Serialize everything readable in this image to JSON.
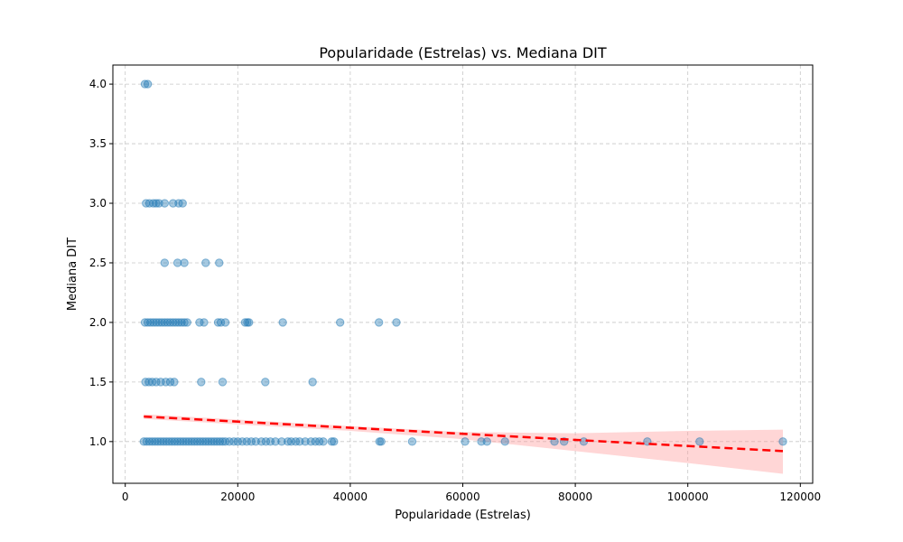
{
  "chart_data": {
    "type": "scatter",
    "title": "Popularidade (Estrelas) vs. Mediana DIT",
    "xlabel": "Popularidade (Estrelas)",
    "ylabel": "Mediana DIT",
    "xlim": [
      -2200,
      122200
    ],
    "ylim": [
      0.65,
      4.16
    ],
    "x_ticks": [
      0,
      20000,
      40000,
      60000,
      80000,
      100000,
      120000
    ],
    "x_tick_labels": [
      "0",
      "20000",
      "40000",
      "60000",
      "80000",
      "100000",
      "120000"
    ],
    "y_ticks": [
      1.0,
      1.5,
      2.0,
      2.5,
      3.0,
      3.5,
      4.0
    ],
    "y_tick_labels": [
      "1.0",
      "1.5",
      "2.0",
      "2.5",
      "3.0",
      "3.5",
      "4.0"
    ],
    "grid": true,
    "grid_style": "dashed",
    "legend": "none",
    "colors": {
      "points": "#1f77b4",
      "trend_line": "#ff0000",
      "confidence_band": "#ff9999"
    },
    "series": [
      {
        "type": "scatter",
        "points": [
          [
            3500,
            4.0
          ],
          [
            4000,
            4.0
          ],
          [
            3700,
            3.0
          ],
          [
            4300,
            3.0
          ],
          [
            5000,
            3.0
          ],
          [
            5500,
            3.0
          ],
          [
            6000,
            3.0
          ],
          [
            7000,
            3.0
          ],
          [
            8500,
            3.0
          ],
          [
            9500,
            3.0
          ],
          [
            10200,
            3.0
          ],
          [
            7000,
            2.5
          ],
          [
            9300,
            2.5
          ],
          [
            10500,
            2.5
          ],
          [
            14300,
            2.5
          ],
          [
            16700,
            2.5
          ],
          [
            3500,
            2.0
          ],
          [
            4000,
            2.0
          ],
          [
            4500,
            2.0
          ],
          [
            5000,
            2.0
          ],
          [
            5500,
            2.0
          ],
          [
            6000,
            2.0
          ],
          [
            6500,
            2.0
          ],
          [
            7000,
            2.0
          ],
          [
            7500,
            2.0
          ],
          [
            8000,
            2.0
          ],
          [
            8500,
            2.0
          ],
          [
            9000,
            2.0
          ],
          [
            9500,
            2.0
          ],
          [
            10000,
            2.0
          ],
          [
            10500,
            2.0
          ],
          [
            11000,
            2.0
          ],
          [
            13200,
            2.0
          ],
          [
            14000,
            2.0
          ],
          [
            16500,
            2.0
          ],
          [
            17000,
            2.0
          ],
          [
            17800,
            2.0
          ],
          [
            21300,
            2.0
          ],
          [
            21700,
            2.0
          ],
          [
            22000,
            2.0
          ],
          [
            28000,
            2.0
          ],
          [
            38200,
            2.0
          ],
          [
            45100,
            2.0
          ],
          [
            48200,
            2.0
          ],
          [
            3600,
            1.5
          ],
          [
            4200,
            1.5
          ],
          [
            4800,
            1.5
          ],
          [
            5500,
            1.5
          ],
          [
            6300,
            1.5
          ],
          [
            7200,
            1.5
          ],
          [
            8000,
            1.5
          ],
          [
            8700,
            1.5
          ],
          [
            13500,
            1.5
          ],
          [
            17300,
            1.5
          ],
          [
            24900,
            1.5
          ],
          [
            33300,
            1.5
          ],
          [
            3300,
            1.0
          ],
          [
            3800,
            1.0
          ],
          [
            4300,
            1.0
          ],
          [
            4800,
            1.0
          ],
          [
            5300,
            1.0
          ],
          [
            5800,
            1.0
          ],
          [
            6300,
            1.0
          ],
          [
            6800,
            1.0
          ],
          [
            7300,
            1.0
          ],
          [
            7800,
            1.0
          ],
          [
            8300,
            1.0
          ],
          [
            8800,
            1.0
          ],
          [
            9300,
            1.0
          ],
          [
            9800,
            1.0
          ],
          [
            10300,
            1.0
          ],
          [
            10800,
            1.0
          ],
          [
            11300,
            1.0
          ],
          [
            11800,
            1.0
          ],
          [
            12300,
            1.0
          ],
          [
            12800,
            1.0
          ],
          [
            13300,
            1.0
          ],
          [
            13800,
            1.0
          ],
          [
            14300,
            1.0
          ],
          [
            14800,
            1.0
          ],
          [
            15300,
            1.0
          ],
          [
            15800,
            1.0
          ],
          [
            16300,
            1.0
          ],
          [
            16800,
            1.0
          ],
          [
            17300,
            1.0
          ],
          [
            17800,
            1.0
          ],
          [
            18500,
            1.0
          ],
          [
            19300,
            1.0
          ],
          [
            20000,
            1.0
          ],
          [
            20800,
            1.0
          ],
          [
            21600,
            1.0
          ],
          [
            22400,
            1.0
          ],
          [
            23200,
            1.0
          ],
          [
            24200,
            1.0
          ],
          [
            25000,
            1.0
          ],
          [
            25800,
            1.0
          ],
          [
            26700,
            1.0
          ],
          [
            27800,
            1.0
          ],
          [
            28900,
            1.0
          ],
          [
            29500,
            1.0
          ],
          [
            30300,
            1.0
          ],
          [
            31000,
            1.0
          ],
          [
            32000,
            1.0
          ],
          [
            33000,
            1.0
          ],
          [
            33800,
            1.0
          ],
          [
            34500,
            1.0
          ],
          [
            35200,
            1.0
          ],
          [
            36700,
            1.0
          ],
          [
            37100,
            1.0
          ],
          [
            45200,
            1.0
          ],
          [
            45500,
            1.0
          ],
          [
            51000,
            1.0
          ],
          [
            60400,
            1.0
          ],
          [
            63300,
            1.0
          ],
          [
            64300,
            1.0
          ],
          [
            67500,
            1.0
          ],
          [
            76300,
            1.0
          ],
          [
            78000,
            1.0
          ],
          [
            81500,
            1.0
          ],
          [
            92800,
            1.0
          ],
          [
            102100,
            1.0
          ],
          [
            116900,
            1.0
          ]
        ]
      }
    ],
    "trend_line": {
      "x": [
        3300,
        116900
      ],
      "y": [
        1.21,
        0.92
      ]
    },
    "confidence_band": {
      "x": [
        3300,
        40000,
        60000,
        80000,
        100000,
        116900
      ],
      "lower": [
        1.19,
        1.09,
        1.02,
        0.92,
        0.82,
        0.73
      ],
      "upper": [
        1.23,
        1.13,
        1.08,
        1.07,
        1.09,
        1.1
      ]
    }
  }
}
